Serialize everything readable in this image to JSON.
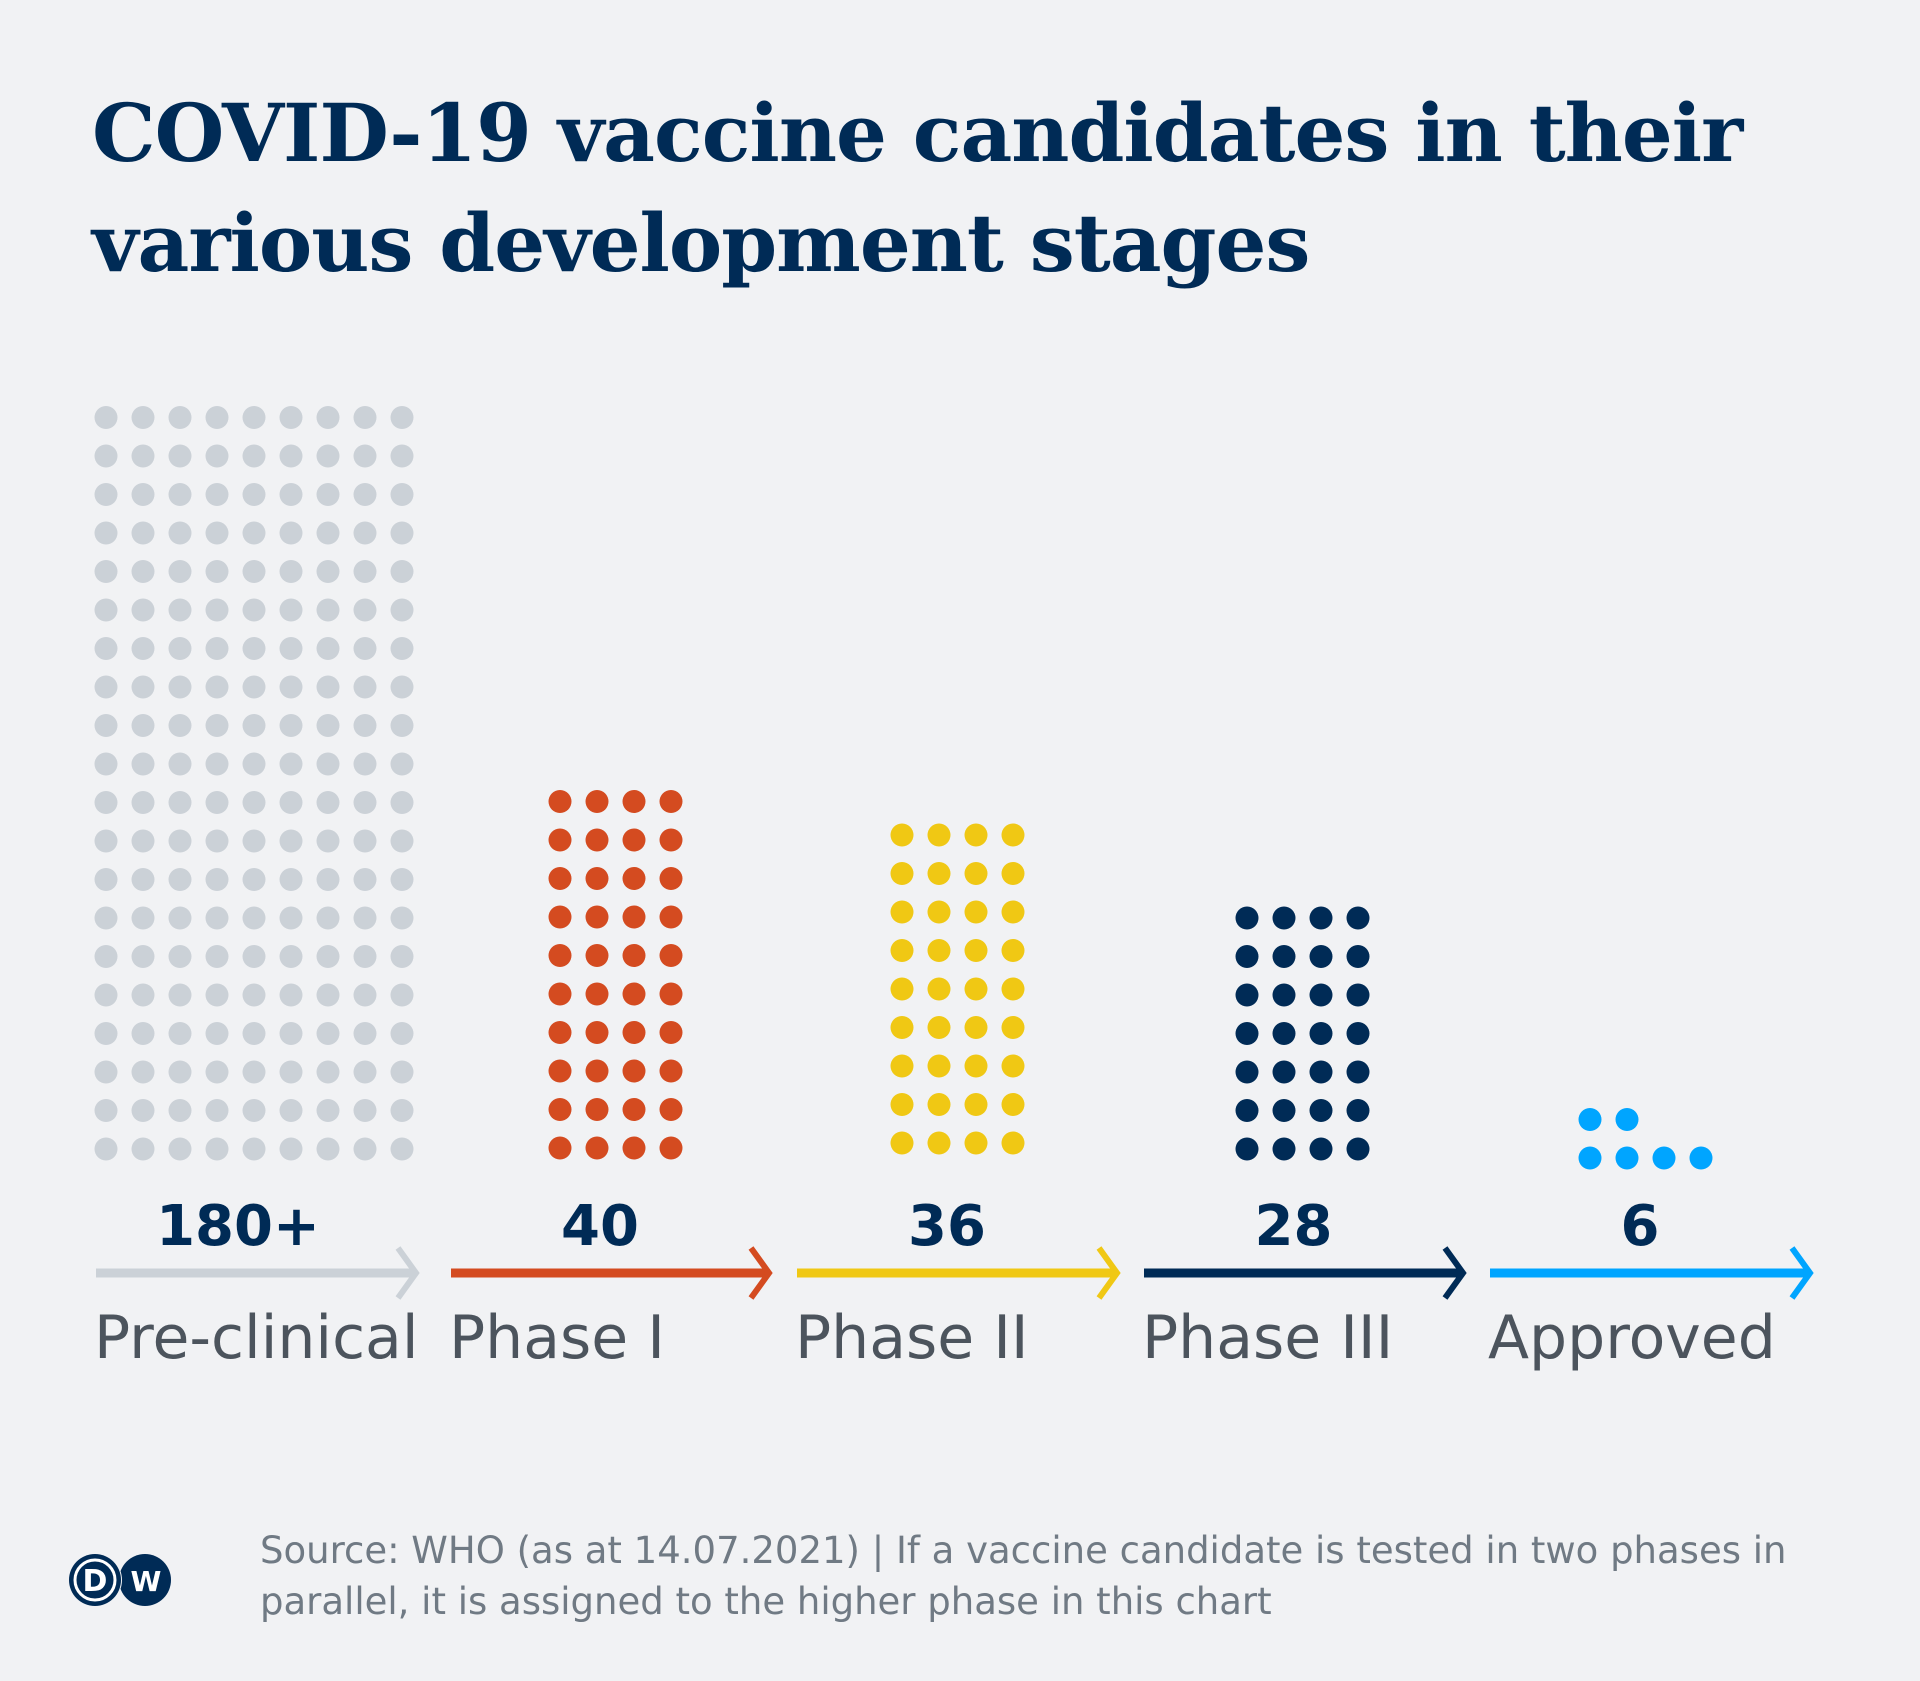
{
  "title": "COVID-19 vaccine candidates in their various development stages",
  "footer": {
    "source": "Source: WHO (as at 14.07.2021) | If a vaccine candidate is tested in two phases in parallel, it is assigned to the higher phase in this chart",
    "logo_text_left": "D",
    "logo_text_right": "W"
  },
  "chart_data": {
    "type": "bar",
    "style": "dot-matrix",
    "title": "COVID-19 vaccine candidates in their various development stages",
    "xlabel": "",
    "ylabel": "",
    "categories": [
      "Pre-clinical",
      "Phase I",
      "Phase II",
      "Phase III",
      "Approved"
    ],
    "values": [
      180,
      40,
      36,
      28,
      6
    ],
    "value_labels": [
      "180+",
      "40",
      "36",
      "28",
      "6"
    ],
    "dots_per_row": [
      9,
      4,
      4,
      4,
      4
    ],
    "colors": [
      "#cbd1d7",
      "#d44b20",
      "#f0c814",
      "#002b56",
      "#00a5ff"
    ],
    "number_color": "#002b56",
    "label_color": "#4c545d",
    "grid": false,
    "legend": "none"
  }
}
